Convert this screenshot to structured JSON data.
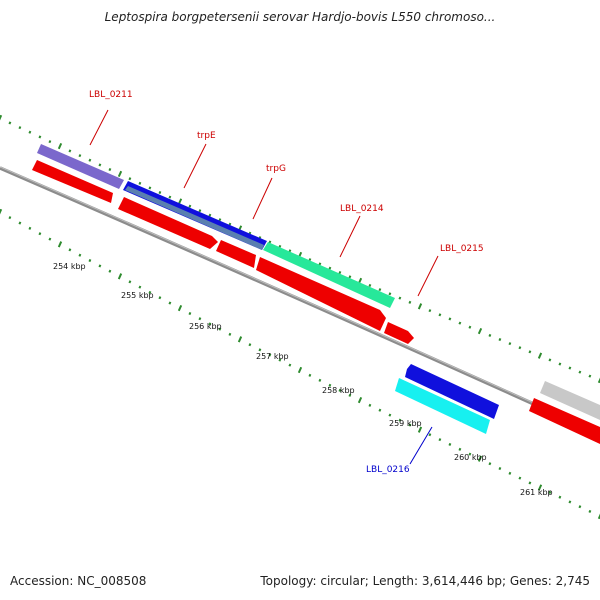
{
  "title": "Leptospira borgpetersenii serovar Hardjo-bovis L550 chromoso...",
  "footer": {
    "accession": "Accession: NC_008508",
    "summary": "Topology: circular; Length: 3,614,446 bp; Genes: 2,745"
  },
  "colors": {
    "label_forward": "#cc0000",
    "label_reverse": "#0000cc",
    "tick": "#2e8b2e",
    "backbone": "#8c8c8c"
  },
  "scale_labels": [
    "254 kbp",
    "255 kbp",
    "256 kbp",
    "257 kbp",
    "258 kbp",
    "259 kbp",
    "260 kbp",
    "261 kbp"
  ],
  "genes": [
    {
      "name": "LBL_0211",
      "strand": "forward"
    },
    {
      "name": "trpE",
      "strand": "forward"
    },
    {
      "name": "trpG",
      "strand": "forward"
    },
    {
      "name": "LBL_0214",
      "strand": "forward"
    },
    {
      "name": "LBL_0215",
      "strand": "forward"
    },
    {
      "name": "LBL_0216",
      "strand": "reverse"
    }
  ]
}
